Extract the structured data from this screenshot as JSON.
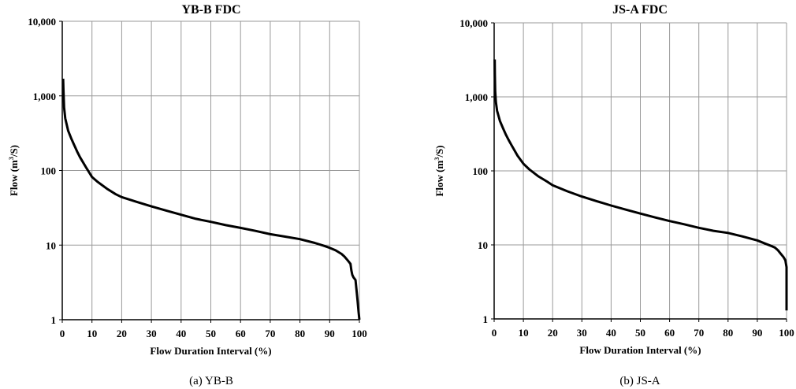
{
  "chart_data": [
    {
      "type": "line",
      "title": "YB-B  FDC",
      "caption": "(a)  YB-B",
      "xlabel": "Flow Duration Interval (%)",
      "ylabel_main": "Flow (m",
      "ylabel_sup": "3",
      "ylabel_end": "/S)",
      "xlim": [
        0,
        100
      ],
      "ylim": [
        1,
        10000
      ],
      "yscale": "log",
      "grid": true,
      "xticks": [
        "0",
        "10",
        "20",
        "30",
        "40",
        "50",
        "60",
        "70",
        "80",
        "90",
        "100"
      ],
      "yticks": [
        "1",
        "10",
        "100",
        "1,000",
        "10,000"
      ],
      "series": [
        {
          "name": "YB-B",
          "color": "#000000",
          "x": [
            0.3,
            0.4,
            0.6,
            1,
            2,
            3,
            4,
            5,
            6,
            8,
            10,
            12,
            15,
            18,
            20,
            25,
            30,
            35,
            40,
            45,
            50,
            55,
            60,
            65,
            70,
            75,
            80,
            85,
            88,
            90,
            92,
            94,
            95,
            96,
            97,
            97.3,
            97.6,
            98,
            98.7,
            99,
            99.4,
            99.7,
            100
          ],
          "y": [
            1700,
            1200,
            700,
            500,
            340,
            270,
            220,
            180,
            150,
            110,
            82,
            70,
            57,
            48,
            44,
            38,
            33,
            29,
            25.5,
            22.5,
            20.5,
            18.5,
            17,
            15.5,
            14,
            13,
            12,
            10.7,
            9.8,
            9.2,
            8.5,
            7.6,
            7,
            6.3,
            5.6,
            4.6,
            4.0,
            3.7,
            3.4,
            2.6,
            1.8,
            1.3,
            1
          ]
        }
      ]
    },
    {
      "type": "line",
      "title": "JS-A  FDC",
      "caption": "(b)  JS-A",
      "xlabel": "Flow Duration Interval (%)",
      "ylabel_main": "Flow (m",
      "ylabel_sup": "3",
      "ylabel_end": "/S)",
      "xlim": [
        0,
        100
      ],
      "ylim": [
        1,
        10000
      ],
      "yscale": "log",
      "grid": true,
      "xticks": [
        "0",
        "10",
        "20",
        "30",
        "40",
        "50",
        "60",
        "70",
        "80",
        "90",
        "100"
      ],
      "yticks": [
        "1",
        "10",
        "100",
        "1,000",
        "10,000"
      ],
      "series": [
        {
          "name": "JS-A",
          "color": "#000000",
          "x": [
            0.2,
            0.25,
            0.35,
            0.6,
            1,
            2,
            3,
            4,
            5,
            6,
            8,
            10,
            12,
            15,
            18,
            20,
            25,
            30,
            35,
            40,
            45,
            50,
            55,
            60,
            65,
            70,
            75,
            80,
            85,
            90,
            93,
            95,
            96,
            97,
            98,
            99,
            99.6,
            100,
            100,
            100
          ],
          "y": [
            3200,
            2000,
            1200,
            850,
            650,
            470,
            380,
            310,
            260,
            220,
            160,
            125,
            105,
            85,
            72,
            64,
            53,
            45,
            39,
            34,
            30,
            26.5,
            23.5,
            21,
            19,
            17,
            15.5,
            14.5,
            13,
            11.5,
            10.3,
            9.6,
            9.2,
            8.5,
            7.6,
            6.8,
            6.2,
            5,
            3,
            1.3
          ]
        }
      ]
    }
  ]
}
